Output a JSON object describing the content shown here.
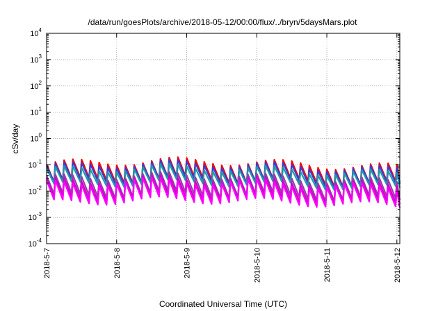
{
  "chart_data": {
    "type": "line",
    "title": "/data/run/goesPlots/archive/2018-05-12/00:00/flux/../bryn/5daysMars.plot",
    "xlabel": "Coordinated Universal Time (UTC)",
    "ylabel": "cSv/day",
    "x_ticks": [
      "2018-5-7",
      "2018-5-8",
      "2018-5-9",
      "2018-5-10",
      "2018-5-11",
      "2018-5-12"
    ],
    "xlim": [
      "2018-05-07T00:00",
      "2018-05-12T01:00"
    ],
    "y_scale": "log",
    "ylim": [
      0.0001,
      10000
    ],
    "y_ticks": [
      {
        "base": "10",
        "exp": "-4"
      },
      {
        "base": "10",
        "exp": "-3"
      },
      {
        "base": "10",
        "exp": "-2"
      },
      {
        "base": "10",
        "exp": "-1"
      },
      {
        "base": "10",
        "exp": "0"
      },
      {
        "base": "10",
        "exp": "1"
      },
      {
        "base": "10",
        "exp": "2"
      },
      {
        "base": "10",
        "exp": "3"
      },
      {
        "base": "10",
        "exp": "4"
      }
    ],
    "grid": true,
    "pattern_note_hours": 3,
    "series": [
      {
        "color": "#ff0000",
        "peak": 0.105,
        "trough": 0.022
      },
      {
        "color": "#3b3bd4",
        "peak": 0.085,
        "trough": 0.02
      },
      {
        "color": "#1f9aa8",
        "peak": 0.06,
        "trough": 0.016
      },
      {
        "color": "#9b3aa8",
        "peak": 0.03,
        "trough": 0.006
      },
      {
        "color": "#cc00cc",
        "peak": 0.022,
        "trough": 0.0045
      },
      {
        "color": "#ff00ff",
        "peak": 0.018,
        "trough": 0.0035
      }
    ]
  }
}
